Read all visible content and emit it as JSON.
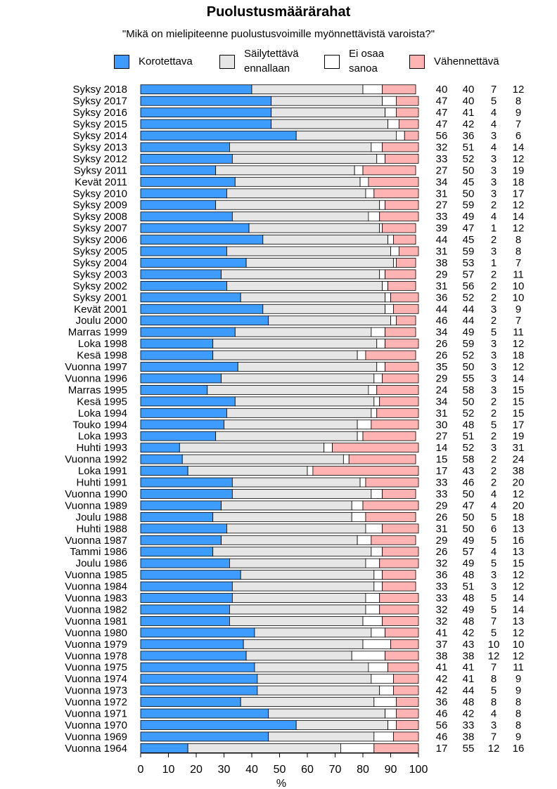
{
  "chart_data": {
    "type": "bar",
    "stacked": true,
    "orientation": "horizontal",
    "title": "Puolustusmäärärahat",
    "subtitle": "\"Mikä on mielipiteenne puolustusvoimille myönnettävistä varoista?\"",
    "xlabel": "%",
    "xlim": [
      0,
      100
    ],
    "xticks": [
      0,
      10,
      20,
      30,
      40,
      50,
      60,
      70,
      80,
      90,
      100
    ],
    "legend_position": "top",
    "series": [
      {
        "name": "Korotettava",
        "color": "#3f9cff"
      },
      {
        "name": "Säilytettävä ennallaan",
        "color": "#e6e6e6"
      },
      {
        "name": "Ei osaa sanoa",
        "color": "#ffffff"
      },
      {
        "name": "Vähennettävä",
        "color": "#ffb3b3"
      }
    ],
    "rows": [
      {
        "label": "Syksy 2018",
        "values": [
          40,
          40,
          7,
          12
        ]
      },
      {
        "label": "Syksy 2017",
        "values": [
          47,
          40,
          5,
          8
        ]
      },
      {
        "label": "Syksy 2016",
        "values": [
          47,
          41,
          4,
          9
        ]
      },
      {
        "label": "Syksy 2015",
        "values": [
          47,
          42,
          4,
          7
        ]
      },
      {
        "label": "Syksy 2014",
        "values": [
          56,
          36,
          3,
          6
        ]
      },
      {
        "label": "Syksy 2013",
        "values": [
          32,
          51,
          4,
          14
        ]
      },
      {
        "label": "Syksy 2012",
        "values": [
          33,
          52,
          3,
          12
        ]
      },
      {
        "label": "Syksy 2011",
        "values": [
          27,
          50,
          3,
          19
        ]
      },
      {
        "label": "Kevät 2011",
        "values": [
          34,
          45,
          3,
          18
        ]
      },
      {
        "label": "Syksy 2010",
        "values": [
          31,
          50,
          3,
          17
        ]
      },
      {
        "label": "Syksy 2009",
        "values": [
          27,
          59,
          2,
          12
        ]
      },
      {
        "label": "Syksy 2008",
        "values": [
          33,
          49,
          4,
          14
        ]
      },
      {
        "label": "Syksy 2007",
        "values": [
          39,
          47,
          1,
          12
        ]
      },
      {
        "label": "Syksy 2006",
        "values": [
          44,
          45,
          2,
          8
        ]
      },
      {
        "label": "Syksy 2005",
        "values": [
          31,
          59,
          3,
          8
        ]
      },
      {
        "label": "Syksy 2004",
        "values": [
          38,
          53,
          1,
          7
        ]
      },
      {
        "label": "Syksy 2003",
        "values": [
          29,
          57,
          2,
          11
        ]
      },
      {
        "label": "Syksy 2002",
        "values": [
          31,
          56,
          2,
          10
        ]
      },
      {
        "label": "Syksy 2001",
        "values": [
          36,
          52,
          2,
          10
        ]
      },
      {
        "label": "Kevät 2001",
        "values": [
          44,
          44,
          3,
          9
        ]
      },
      {
        "label": "Joulu 2000",
        "values": [
          46,
          44,
          2,
          7
        ]
      },
      {
        "label": "Marras 1999",
        "values": [
          34,
          49,
          5,
          11
        ]
      },
      {
        "label": "Loka 1998",
        "values": [
          26,
          59,
          3,
          12
        ]
      },
      {
        "label": "Kesä 1998",
        "values": [
          26,
          52,
          3,
          18
        ]
      },
      {
        "label": "Vuonna 1997",
        "values": [
          35,
          50,
          3,
          12
        ]
      },
      {
        "label": "Vuonna 1996",
        "values": [
          29,
          55,
          3,
          14
        ]
      },
      {
        "label": "Marras 1995",
        "values": [
          24,
          58,
          3,
          15
        ]
      },
      {
        "label": "Kesä 1995",
        "values": [
          34,
          50,
          2,
          15
        ]
      },
      {
        "label": "Loka 1994",
        "values": [
          31,
          52,
          2,
          15
        ]
      },
      {
        "label": "Touko 1994",
        "values": [
          30,
          48,
          5,
          17
        ]
      },
      {
        "label": "Loka 1993",
        "values": [
          27,
          51,
          2,
          19
        ]
      },
      {
        "label": "Huhti 1993",
        "values": [
          14,
          52,
          3,
          31
        ]
      },
      {
        "label": "Vuonna 1992",
        "values": [
          15,
          58,
          2,
          24
        ]
      },
      {
        "label": "Loka 1991",
        "values": [
          17,
          43,
          2,
          38
        ]
      },
      {
        "label": "Huhti 1991",
        "values": [
          33,
          46,
          2,
          20
        ]
      },
      {
        "label": "Vuonna 1990",
        "values": [
          33,
          50,
          4,
          12
        ]
      },
      {
        "label": "Vuonna 1989",
        "values": [
          29,
          47,
          4,
          20
        ]
      },
      {
        "label": "Joulu 1988",
        "values": [
          26,
          50,
          5,
          18
        ]
      },
      {
        "label": "Huhti 1988",
        "values": [
          31,
          50,
          6,
          13
        ]
      },
      {
        "label": "Vuonna 1987",
        "values": [
          29,
          49,
          5,
          16
        ]
      },
      {
        "label": "Tammi 1986",
        "values": [
          26,
          57,
          4,
          13
        ]
      },
      {
        "label": "Joulu 1986",
        "values": [
          32,
          49,
          5,
          15
        ]
      },
      {
        "label": "Vuonna 1985",
        "values": [
          36,
          48,
          3,
          12
        ]
      },
      {
        "label": "Vuonna 1984",
        "values": [
          33,
          51,
          3,
          12
        ]
      },
      {
        "label": "Vuonna 1983",
        "values": [
          33,
          48,
          5,
          14
        ]
      },
      {
        "label": "Vuonna 1982",
        "values": [
          32,
          49,
          5,
          14
        ]
      },
      {
        "label": "Vuonna 1981",
        "values": [
          32,
          48,
          7,
          13
        ]
      },
      {
        "label": "Vuonna 1980",
        "values": [
          41,
          42,
          5,
          12
        ]
      },
      {
        "label": "Vuonna 1979",
        "values": [
          37,
          43,
          10,
          10
        ]
      },
      {
        "label": "Vuonna 1978",
        "values": [
          38,
          38,
          12,
          12
        ]
      },
      {
        "label": "Vuonna 1975",
        "values": [
          41,
          41,
          7,
          11
        ]
      },
      {
        "label": "Vuonna 1974",
        "values": [
          42,
          41,
          8,
          9
        ]
      },
      {
        "label": "Vuonna 1973",
        "values": [
          42,
          44,
          5,
          9
        ]
      },
      {
        "label": "Vuonna 1972",
        "values": [
          36,
          48,
          8,
          8
        ]
      },
      {
        "label": "Vuonna 1971",
        "values": [
          46,
          42,
          4,
          8
        ]
      },
      {
        "label": "Vuonna 1970",
        "values": [
          56,
          33,
          3,
          8
        ]
      },
      {
        "label": "Vuonna 1969",
        "values": [
          46,
          38,
          7,
          9
        ]
      },
      {
        "label": "Vuonna 1964",
        "values": [
          17,
          55,
          12,
          16
        ]
      }
    ]
  }
}
